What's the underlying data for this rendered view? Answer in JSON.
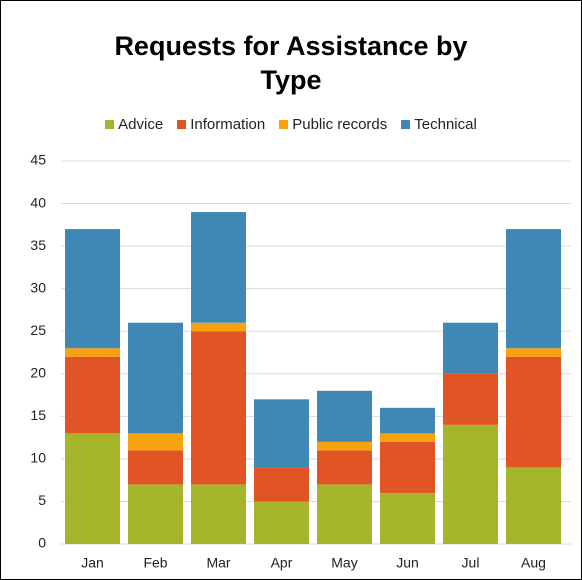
{
  "chart_data": {
    "type": "stacked_bar",
    "title": "Requests for Assistance by Type",
    "categories": [
      "Jan",
      "Feb",
      "Mar",
      "Apr",
      "May",
      "Jun",
      "Jul",
      "Aug"
    ],
    "series": [
      {
        "name": "Advice",
        "color": "#a5b52a",
        "values": [
          13,
          7,
          7,
          5,
          7,
          6,
          14,
          9
        ]
      },
      {
        "name": "Information",
        "color": "#e05425",
        "values": [
          9,
          4,
          18,
          4,
          4,
          6,
          6,
          13
        ]
      },
      {
        "name": "Public records",
        "color": "#f8a20e",
        "values": [
          1,
          2,
          1,
          0,
          1,
          1,
          0,
          1
        ]
      },
      {
        "name": "Technical",
        "color": "#3f88b5",
        "values": [
          14,
          13,
          13,
          8,
          6,
          3,
          6,
          14
        ]
      }
    ],
    "ylim": [
      0,
      45
    ],
    "yticks": [
      0,
      5,
      10,
      15,
      20,
      25,
      30,
      35,
      40,
      45
    ],
    "grid": true,
    "legend": "top"
  }
}
